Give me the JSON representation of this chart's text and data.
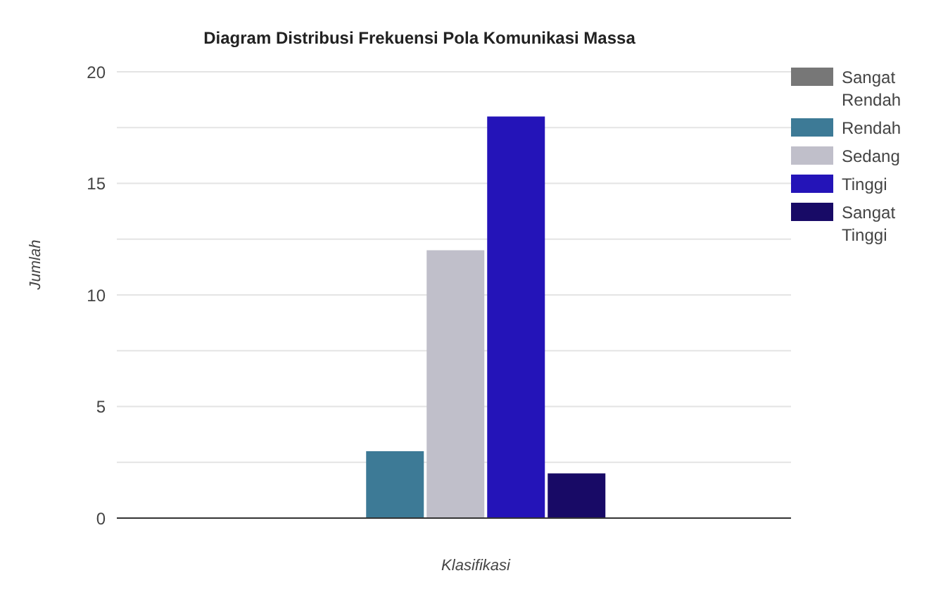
{
  "chart_data": {
    "type": "bar",
    "title": "Diagram Distribusi Frekuensi Pola Komunikasi Massa",
    "xlabel": "Klasifikasi",
    "ylabel": "Jumlah",
    "categories": [
      null
    ],
    "series": [
      {
        "name": "Sangat Rendah",
        "color": "#777777",
        "values": [
          0
        ]
      },
      {
        "name": "Rendah",
        "color": "#3d7a96",
        "values": [
          3
        ]
      },
      {
        "name": "Sedang",
        "color": "#c0bfca",
        "values": [
          12
        ]
      },
      {
        "name": "Tinggi",
        "color": "#2414b8",
        "values": [
          18
        ]
      },
      {
        "name": "Sangat Tinggi",
        "color": "#180a66",
        "values": [
          2
        ]
      }
    ],
    "ylim": [
      0,
      20
    ],
    "yticks": [
      0,
      {
        "value": 2.5,
        "label": null
      },
      5,
      {
        "value": 7.5,
        "label": null
      },
      10,
      {
        "value": 12.5,
        "label": null
      },
      15,
      {
        "value": 17.5,
        "label": null
      },
      20
    ],
    "grid": "y",
    "legend": "right"
  }
}
